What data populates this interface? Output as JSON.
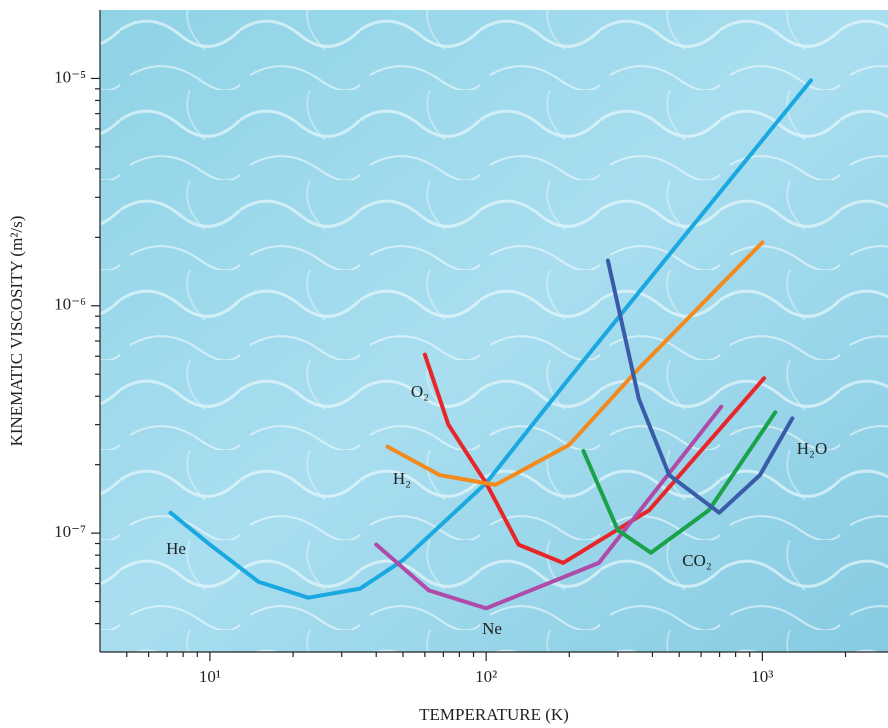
{
  "chart_data": {
    "type": "line",
    "x_label": "TEMPERATURE (K)",
    "y_label": "KINEMATIC VISCOSITY (m²/s)",
    "log_x": true,
    "log_y": true,
    "xlim": [
      4,
      2850
    ],
    "ylim": [
      3e-08,
      2e-05
    ],
    "xticks": [
      {
        "value": 10,
        "label": "10¹"
      },
      {
        "value": 100,
        "label": "10²"
      },
      {
        "value": 1000,
        "label": "10³"
      }
    ],
    "yticks": [
      {
        "value": 1e-07,
        "label": "10⁻⁷"
      },
      {
        "value": 1e-06,
        "label": "10⁻⁶"
      },
      {
        "value": 1e-05,
        "label": "10⁻⁵"
      }
    ],
    "xminorticks": [
      5,
      6,
      7,
      8,
      9,
      20,
      30,
      40,
      50,
      60,
      70,
      80,
      90,
      200,
      300,
      400,
      500,
      600,
      700,
      800,
      900,
      2000
    ],
    "yminorticks": [
      4e-08,
      5e-08,
      6e-08,
      7e-08,
      8e-08,
      9e-08,
      2e-07,
      3e-07,
      4e-07,
      5e-07,
      6e-07,
      7e-07,
      8e-07,
      9e-07,
      2e-06,
      3e-06,
      4e-06,
      5e-06,
      6e-06,
      7e-06,
      8e-06,
      9e-06
    ],
    "series": [
      {
        "name": "He",
        "color": "#1aa8e0",
        "x": [
          7.2,
          10,
          15,
          22.7,
          35,
          50,
          100,
          200,
          500,
          1500
        ],
        "values": [
          1.23e-07,
          8.9e-08,
          6.1e-08,
          5.2e-08,
          5.7e-08,
          7.6e-08,
          1.66e-07,
          4.8e-07,
          1.9e-06,
          9.8e-06
        ]
      },
      {
        "name": "O₂",
        "color": "#e8262a",
        "x": [
          60,
          73,
          100,
          131,
          190,
          389,
          1015
        ],
        "values": [
          6.1e-07,
          3e-07,
          1.66e-07,
          8.9e-08,
          7.4e-08,
          1.26e-07,
          4.8e-07
        ]
      },
      {
        "name": "H₂",
        "color": "#f28a1e",
        "x": [
          44,
          68,
          108,
          200,
          357,
          1000
        ],
        "values": [
          2.4e-07,
          1.8e-07,
          1.63e-07,
          2.45e-07,
          5.3e-07,
          1.9e-06
        ]
      },
      {
        "name": "Ne",
        "color": "#b04aa8",
        "x": [
          40,
          62,
          100,
          256,
          710
        ],
        "values": [
          8.9e-08,
          5.6e-08,
          4.67e-08,
          7.4e-08,
          3.6e-07
        ]
      },
      {
        "name": "CO₂",
        "color": "#1aa24a",
        "x": [
          225,
          300,
          395,
          640,
          1114
        ],
        "values": [
          2.3e-07,
          1.03e-07,
          8.2e-08,
          1.26e-07,
          3.4e-07
        ]
      },
      {
        "name": "H₂O",
        "color": "#3a5ba8",
        "x": [
          276,
          357,
          460,
          698,
          980,
          1285
        ],
        "values": [
          1.58e-06,
          3.9e-07,
          1.8e-07,
          1.23e-07,
          1.8e-07,
          3.2e-07
        ]
      }
    ]
  }
}
